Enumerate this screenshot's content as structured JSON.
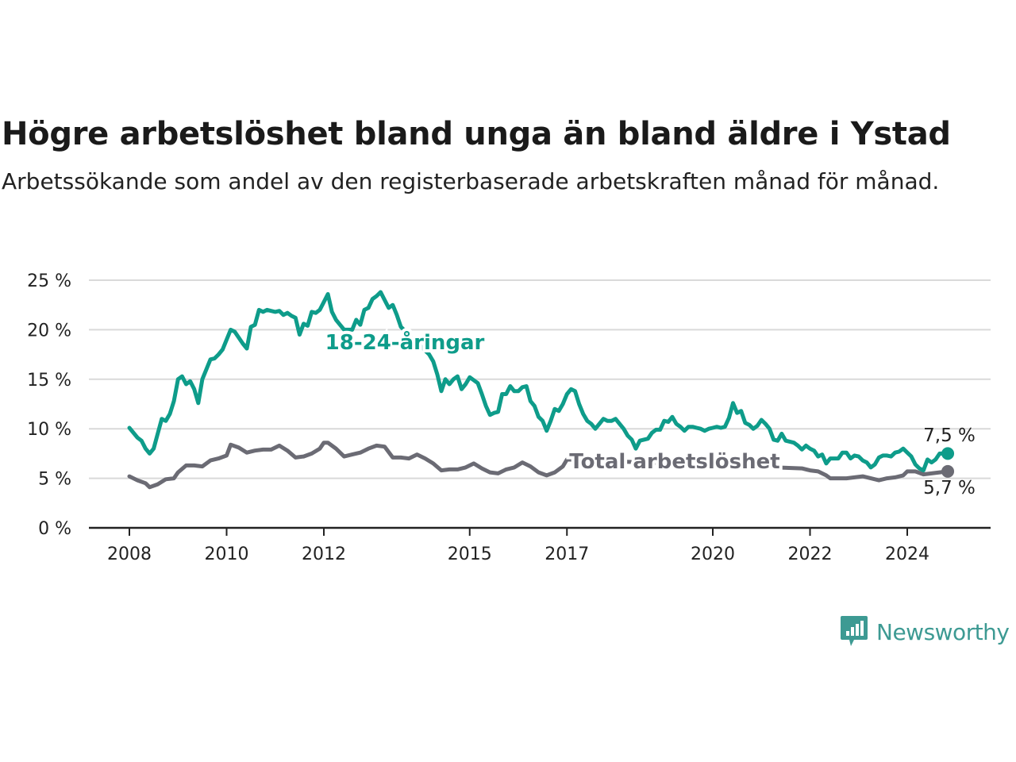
{
  "header": {
    "title": "Högre arbetslöshet bland unga än bland äldre i Ystad",
    "subtitle": "Arbetssökande som andel av den registerbaserade arbetskraften månad för månad."
  },
  "brand": {
    "name": "Newsworthy",
    "icon": "newsworthy-logo-icon",
    "color": "#3d9a93"
  },
  "colors": {
    "youth": "#0e9c8a",
    "total": "#6b6b74",
    "grid": "#d9d9d9",
    "axis": "#222222"
  },
  "chart_data": {
    "type": "line",
    "title": "Högre arbetslöshet bland unga än bland äldre i Ystad",
    "ylim": [
      0,
      25
    ],
    "yticks": [
      "0 %",
      "5 %",
      "10 %",
      "15 %",
      "20 %",
      "25 %"
    ],
    "xticks": [
      "2008",
      "2010",
      "2012",
      "2015",
      "2017",
      "2020",
      "2022",
      "2024"
    ],
    "xtick_years": [
      2008,
      2010,
      2012,
      2015,
      2017,
      2020,
      2022,
      2024
    ],
    "grid": "horizontal",
    "series": [
      {
        "name": "18-24-åringar",
        "label": "18-24-åringar",
        "end_label": "7,5 %",
        "points": [
          [
            "2008-01",
            10.1
          ],
          [
            "2008-03",
            9.1
          ],
          [
            "2008-04",
            8.8
          ],
          [
            "2008-05",
            8.0
          ],
          [
            "2008-06",
            7.5
          ],
          [
            "2008-07",
            8.0
          ],
          [
            "2008-08",
            9.5
          ],
          [
            "2008-09",
            11.0
          ],
          [
            "2008-10",
            10.8
          ],
          [
            "2008-11",
            11.5
          ],
          [
            "2008-12",
            12.8
          ],
          [
            "2009-01",
            15.0
          ],
          [
            "2009-02",
            15.3
          ],
          [
            "2009-03",
            14.5
          ],
          [
            "2009-04",
            14.8
          ],
          [
            "2009-05",
            14.0
          ],
          [
            "2009-06",
            12.6
          ],
          [
            "2009-07",
            15.0
          ],
          [
            "2009-08",
            16.0
          ],
          [
            "2009-09",
            17.0
          ],
          [
            "2009-10",
            17.1
          ],
          [
            "2009-11",
            17.5
          ],
          [
            "2009-12",
            18.0
          ],
          [
            "2010-01",
            19.0
          ],
          [
            "2010-02",
            20.0
          ],
          [
            "2010-03",
            19.8
          ],
          [
            "2010-04",
            19.2
          ],
          [
            "2010-05",
            18.6
          ],
          [
            "2010-06",
            18.1
          ],
          [
            "2010-07",
            20.3
          ],
          [
            "2010-08",
            20.5
          ],
          [
            "2010-09",
            22.0
          ],
          [
            "2010-10",
            21.8
          ],
          [
            "2010-11",
            22.0
          ],
          [
            "2010-12",
            21.9
          ],
          [
            "2011-01",
            21.8
          ],
          [
            "2011-02",
            21.9
          ],
          [
            "2011-03",
            21.5
          ],
          [
            "2011-04",
            21.7
          ],
          [
            "2011-05",
            21.4
          ],
          [
            "2011-06",
            21.2
          ],
          [
            "2011-07",
            19.5
          ],
          [
            "2011-08",
            20.6
          ],
          [
            "2011-09",
            20.4
          ],
          [
            "2011-10",
            21.8
          ],
          [
            "2011-11",
            21.7
          ],
          [
            "2011-12",
            22.0
          ],
          [
            "2012-01",
            22.8
          ],
          [
            "2012-02",
            23.6
          ],
          [
            "2012-03",
            21.8
          ],
          [
            "2012-04",
            21.0
          ],
          [
            "2012-05",
            20.5
          ],
          [
            "2012-06",
            20.0
          ],
          [
            "2012-08",
            20.0
          ],
          [
            "2012-09",
            21.0
          ],
          [
            "2012-10",
            20.5
          ],
          [
            "2012-11",
            22.0
          ],
          [
            "2012-12",
            22.2
          ],
          [
            "2013-01",
            23.1
          ],
          [
            "2013-02",
            23.4
          ],
          [
            "2013-03",
            23.8
          ],
          [
            "2013-04",
            23.0
          ],
          [
            "2013-05",
            22.2
          ],
          [
            "2013-06",
            22.5
          ],
          [
            "2013-07",
            21.5
          ],
          [
            "2013-08",
            20.3
          ],
          [
            "2014-03",
            17.5
          ],
          [
            "2014-04",
            16.8
          ],
          [
            "2014-05",
            15.5
          ],
          [
            "2014-06",
            13.8
          ],
          [
            "2014-07",
            15.0
          ],
          [
            "2014-08",
            14.5
          ],
          [
            "2014-09",
            15.0
          ],
          [
            "2014-10",
            15.3
          ],
          [
            "2014-11",
            14.0
          ],
          [
            "2014-12",
            14.5
          ],
          [
            "2015-01",
            15.2
          ],
          [
            "2015-02",
            14.9
          ],
          [
            "2015-03",
            14.6
          ],
          [
            "2015-04",
            13.5
          ],
          [
            "2015-05",
            12.3
          ],
          [
            "2015-06",
            11.4
          ],
          [
            "2015-07",
            11.6
          ],
          [
            "2015-08",
            11.7
          ],
          [
            "2015-09",
            13.5
          ],
          [
            "2015-10",
            13.5
          ],
          [
            "2015-11",
            14.3
          ],
          [
            "2015-12",
            13.8
          ],
          [
            "2016-01",
            13.8
          ],
          [
            "2016-02",
            14.2
          ],
          [
            "2016-03",
            14.3
          ],
          [
            "2016-04",
            12.8
          ],
          [
            "2016-05",
            12.3
          ],
          [
            "2016-06",
            11.2
          ],
          [
            "2016-07",
            10.8
          ],
          [
            "2016-08",
            9.8
          ],
          [
            "2016-09",
            10.8
          ],
          [
            "2016-10",
            12.0
          ],
          [
            "2016-11",
            11.8
          ],
          [
            "2016-12",
            12.5
          ],
          [
            "2017-01",
            13.5
          ],
          [
            "2017-02",
            14.0
          ],
          [
            "2017-03",
            13.8
          ],
          [
            "2017-04",
            12.5
          ],
          [
            "2017-05",
            11.5
          ],
          [
            "2017-06",
            10.8
          ],
          [
            "2017-07",
            10.5
          ],
          [
            "2017-08",
            10.0
          ],
          [
            "2017-09",
            10.5
          ],
          [
            "2017-10",
            11.0
          ],
          [
            "2017-11",
            10.8
          ],
          [
            "2017-12",
            10.8
          ],
          [
            "2018-01",
            11.0
          ],
          [
            "2018-02",
            10.5
          ],
          [
            "2018-03",
            10.0
          ],
          [
            "2018-04",
            9.3
          ],
          [
            "2018-05",
            8.9
          ],
          [
            "2018-06",
            8.0
          ],
          [
            "2018-07",
            8.8
          ],
          [
            "2018-08",
            8.9
          ],
          [
            "2018-09",
            9.0
          ],
          [
            "2018-10",
            9.6
          ],
          [
            "2018-11",
            9.9
          ],
          [
            "2018-12",
            9.9
          ],
          [
            "2019-01",
            10.8
          ],
          [
            "2019-02",
            10.7
          ],
          [
            "2019-03",
            11.2
          ],
          [
            "2019-04",
            10.5
          ],
          [
            "2019-05",
            10.2
          ],
          [
            "2019-06",
            9.8
          ],
          [
            "2019-07",
            10.2
          ],
          [
            "2019-08",
            10.2
          ],
          [
            "2019-09",
            10.1
          ],
          [
            "2019-10",
            10.0
          ],
          [
            "2019-11",
            9.8
          ],
          [
            "2019-12",
            10.0
          ],
          [
            "2020-01",
            10.1
          ],
          [
            "2020-02",
            10.2
          ],
          [
            "2020-03",
            10.1
          ],
          [
            "2020-04",
            10.2
          ],
          [
            "2020-05",
            11.1
          ],
          [
            "2020-06",
            12.6
          ],
          [
            "2020-07",
            11.6
          ],
          [
            "2020-08",
            11.8
          ],
          [
            "2020-09",
            10.6
          ],
          [
            "2020-10",
            10.4
          ],
          [
            "2020-11",
            10.0
          ],
          [
            "2020-12",
            10.3
          ],
          [
            "2021-01",
            10.9
          ],
          [
            "2021-02",
            10.5
          ],
          [
            "2021-03",
            10.0
          ],
          [
            "2021-04",
            8.9
          ],
          [
            "2021-05",
            8.8
          ],
          [
            "2021-06",
            9.5
          ],
          [
            "2021-07",
            8.8
          ],
          [
            "2021-08",
            8.7
          ],
          [
            "2021-09",
            8.6
          ],
          [
            "2021-10",
            8.3
          ],
          [
            "2021-11",
            7.9
          ],
          [
            "2021-12",
            8.3
          ],
          [
            "2022-01",
            8.0
          ],
          [
            "2022-02",
            7.8
          ],
          [
            "2022-03",
            7.2
          ],
          [
            "2022-04",
            7.4
          ],
          [
            "2022-05",
            6.5
          ],
          [
            "2022-06",
            7.0
          ],
          [
            "2022-07",
            7.0
          ],
          [
            "2022-08",
            7.0
          ],
          [
            "2022-09",
            7.6
          ],
          [
            "2022-10",
            7.6
          ],
          [
            "2022-11",
            7.0
          ],
          [
            "2022-12",
            7.3
          ],
          [
            "2023-01",
            7.2
          ],
          [
            "2023-02",
            6.8
          ],
          [
            "2023-03",
            6.6
          ],
          [
            "2023-04",
            6.1
          ],
          [
            "2023-05",
            6.4
          ],
          [
            "2023-06",
            7.1
          ],
          [
            "2023-07",
            7.3
          ],
          [
            "2023-08",
            7.3
          ],
          [
            "2023-09",
            7.2
          ],
          [
            "2023-10",
            7.6
          ],
          [
            "2023-11",
            7.7
          ],
          [
            "2023-12",
            8.0
          ],
          [
            "2024-01",
            7.6
          ],
          [
            "2024-02",
            7.2
          ],
          [
            "2024-03",
            6.4
          ],
          [
            "2024-04",
            6.0
          ],
          [
            "2024-05",
            5.8
          ],
          [
            "2024-06",
            6.9
          ],
          [
            "2024-07",
            6.6
          ],
          [
            "2024-08",
            6.9
          ],
          [
            "2024-09",
            7.5
          ],
          [
            "2024-10",
            7.5
          ],
          [
            "2024-11",
            7.5
          ]
        ]
      },
      {
        "name": "Total arbetslöshet",
        "label": "Total arbetslöshet",
        "end_label": "5,7 %",
        "points": [
          [
            "2008-01",
            5.2
          ],
          [
            "2008-03",
            4.8
          ],
          [
            "2008-05",
            4.5
          ],
          [
            "2008-06",
            4.1
          ],
          [
            "2008-08",
            4.4
          ],
          [
            "2008-10",
            4.9
          ],
          [
            "2008-12",
            5.0
          ],
          [
            "2009-01",
            5.6
          ],
          [
            "2009-03",
            6.3
          ],
          [
            "2009-05",
            6.3
          ],
          [
            "2009-07",
            6.2
          ],
          [
            "2009-09",
            6.8
          ],
          [
            "2009-11",
            7.0
          ],
          [
            "2010-01",
            7.3
          ],
          [
            "2010-02",
            8.4
          ],
          [
            "2010-04",
            8.1
          ],
          [
            "2010-06",
            7.6
          ],
          [
            "2010-08",
            7.8
          ],
          [
            "2010-10",
            7.9
          ],
          [
            "2010-12",
            7.9
          ],
          [
            "2011-02",
            8.3
          ],
          [
            "2011-04",
            7.8
          ],
          [
            "2011-06",
            7.1
          ],
          [
            "2011-08",
            7.2
          ],
          [
            "2011-10",
            7.5
          ],
          [
            "2011-12",
            8.0
          ],
          [
            "2012-01",
            8.6
          ],
          [
            "2012-02",
            8.6
          ],
          [
            "2012-04",
            8.0
          ],
          [
            "2012-06",
            7.2
          ],
          [
            "2012-08",
            7.4
          ],
          [
            "2012-10",
            7.6
          ],
          [
            "2012-12",
            8.0
          ],
          [
            "2013-02",
            8.3
          ],
          [
            "2013-04",
            8.2
          ],
          [
            "2013-06",
            7.1
          ],
          [
            "2013-08",
            7.1
          ],
          [
            "2013-10",
            7.0
          ],
          [
            "2013-12",
            7.4
          ],
          [
            "2014-02",
            7.0
          ],
          [
            "2014-04",
            6.5
          ],
          [
            "2014-06",
            5.8
          ],
          [
            "2014-08",
            5.9
          ],
          [
            "2014-10",
            5.9
          ],
          [
            "2014-12",
            6.1
          ],
          [
            "2015-02",
            6.5
          ],
          [
            "2015-04",
            6.0
          ],
          [
            "2015-06",
            5.6
          ],
          [
            "2015-08",
            5.5
          ],
          [
            "2015-10",
            5.9
          ],
          [
            "2015-12",
            6.1
          ],
          [
            "2016-02",
            6.6
          ],
          [
            "2016-04",
            6.2
          ],
          [
            "2016-06",
            5.6
          ],
          [
            "2016-08",
            5.3
          ],
          [
            "2016-10",
            5.6
          ],
          [
            "2016-12",
            6.2
          ],
          [
            "2017-01",
            6.9
          ],
          [
            "2021-11",
            6.0
          ],
          [
            "2022-01",
            5.8
          ],
          [
            "2022-03",
            5.7
          ],
          [
            "2022-05",
            5.3
          ],
          [
            "2022-06",
            5.0
          ],
          [
            "2022-08",
            5.0
          ],
          [
            "2022-10",
            5.0
          ],
          [
            "2022-12",
            5.1
          ],
          [
            "2023-02",
            5.2
          ],
          [
            "2023-04",
            5.0
          ],
          [
            "2023-06",
            4.8
          ],
          [
            "2023-08",
            5.0
          ],
          [
            "2023-10",
            5.1
          ],
          [
            "2023-12",
            5.3
          ],
          [
            "2024-01",
            5.7
          ],
          [
            "2024-03",
            5.7
          ],
          [
            "2024-05",
            5.4
          ],
          [
            "2024-07",
            5.5
          ],
          [
            "2024-09",
            5.6
          ],
          [
            "2024-11",
            5.7
          ]
        ]
      }
    ]
  }
}
